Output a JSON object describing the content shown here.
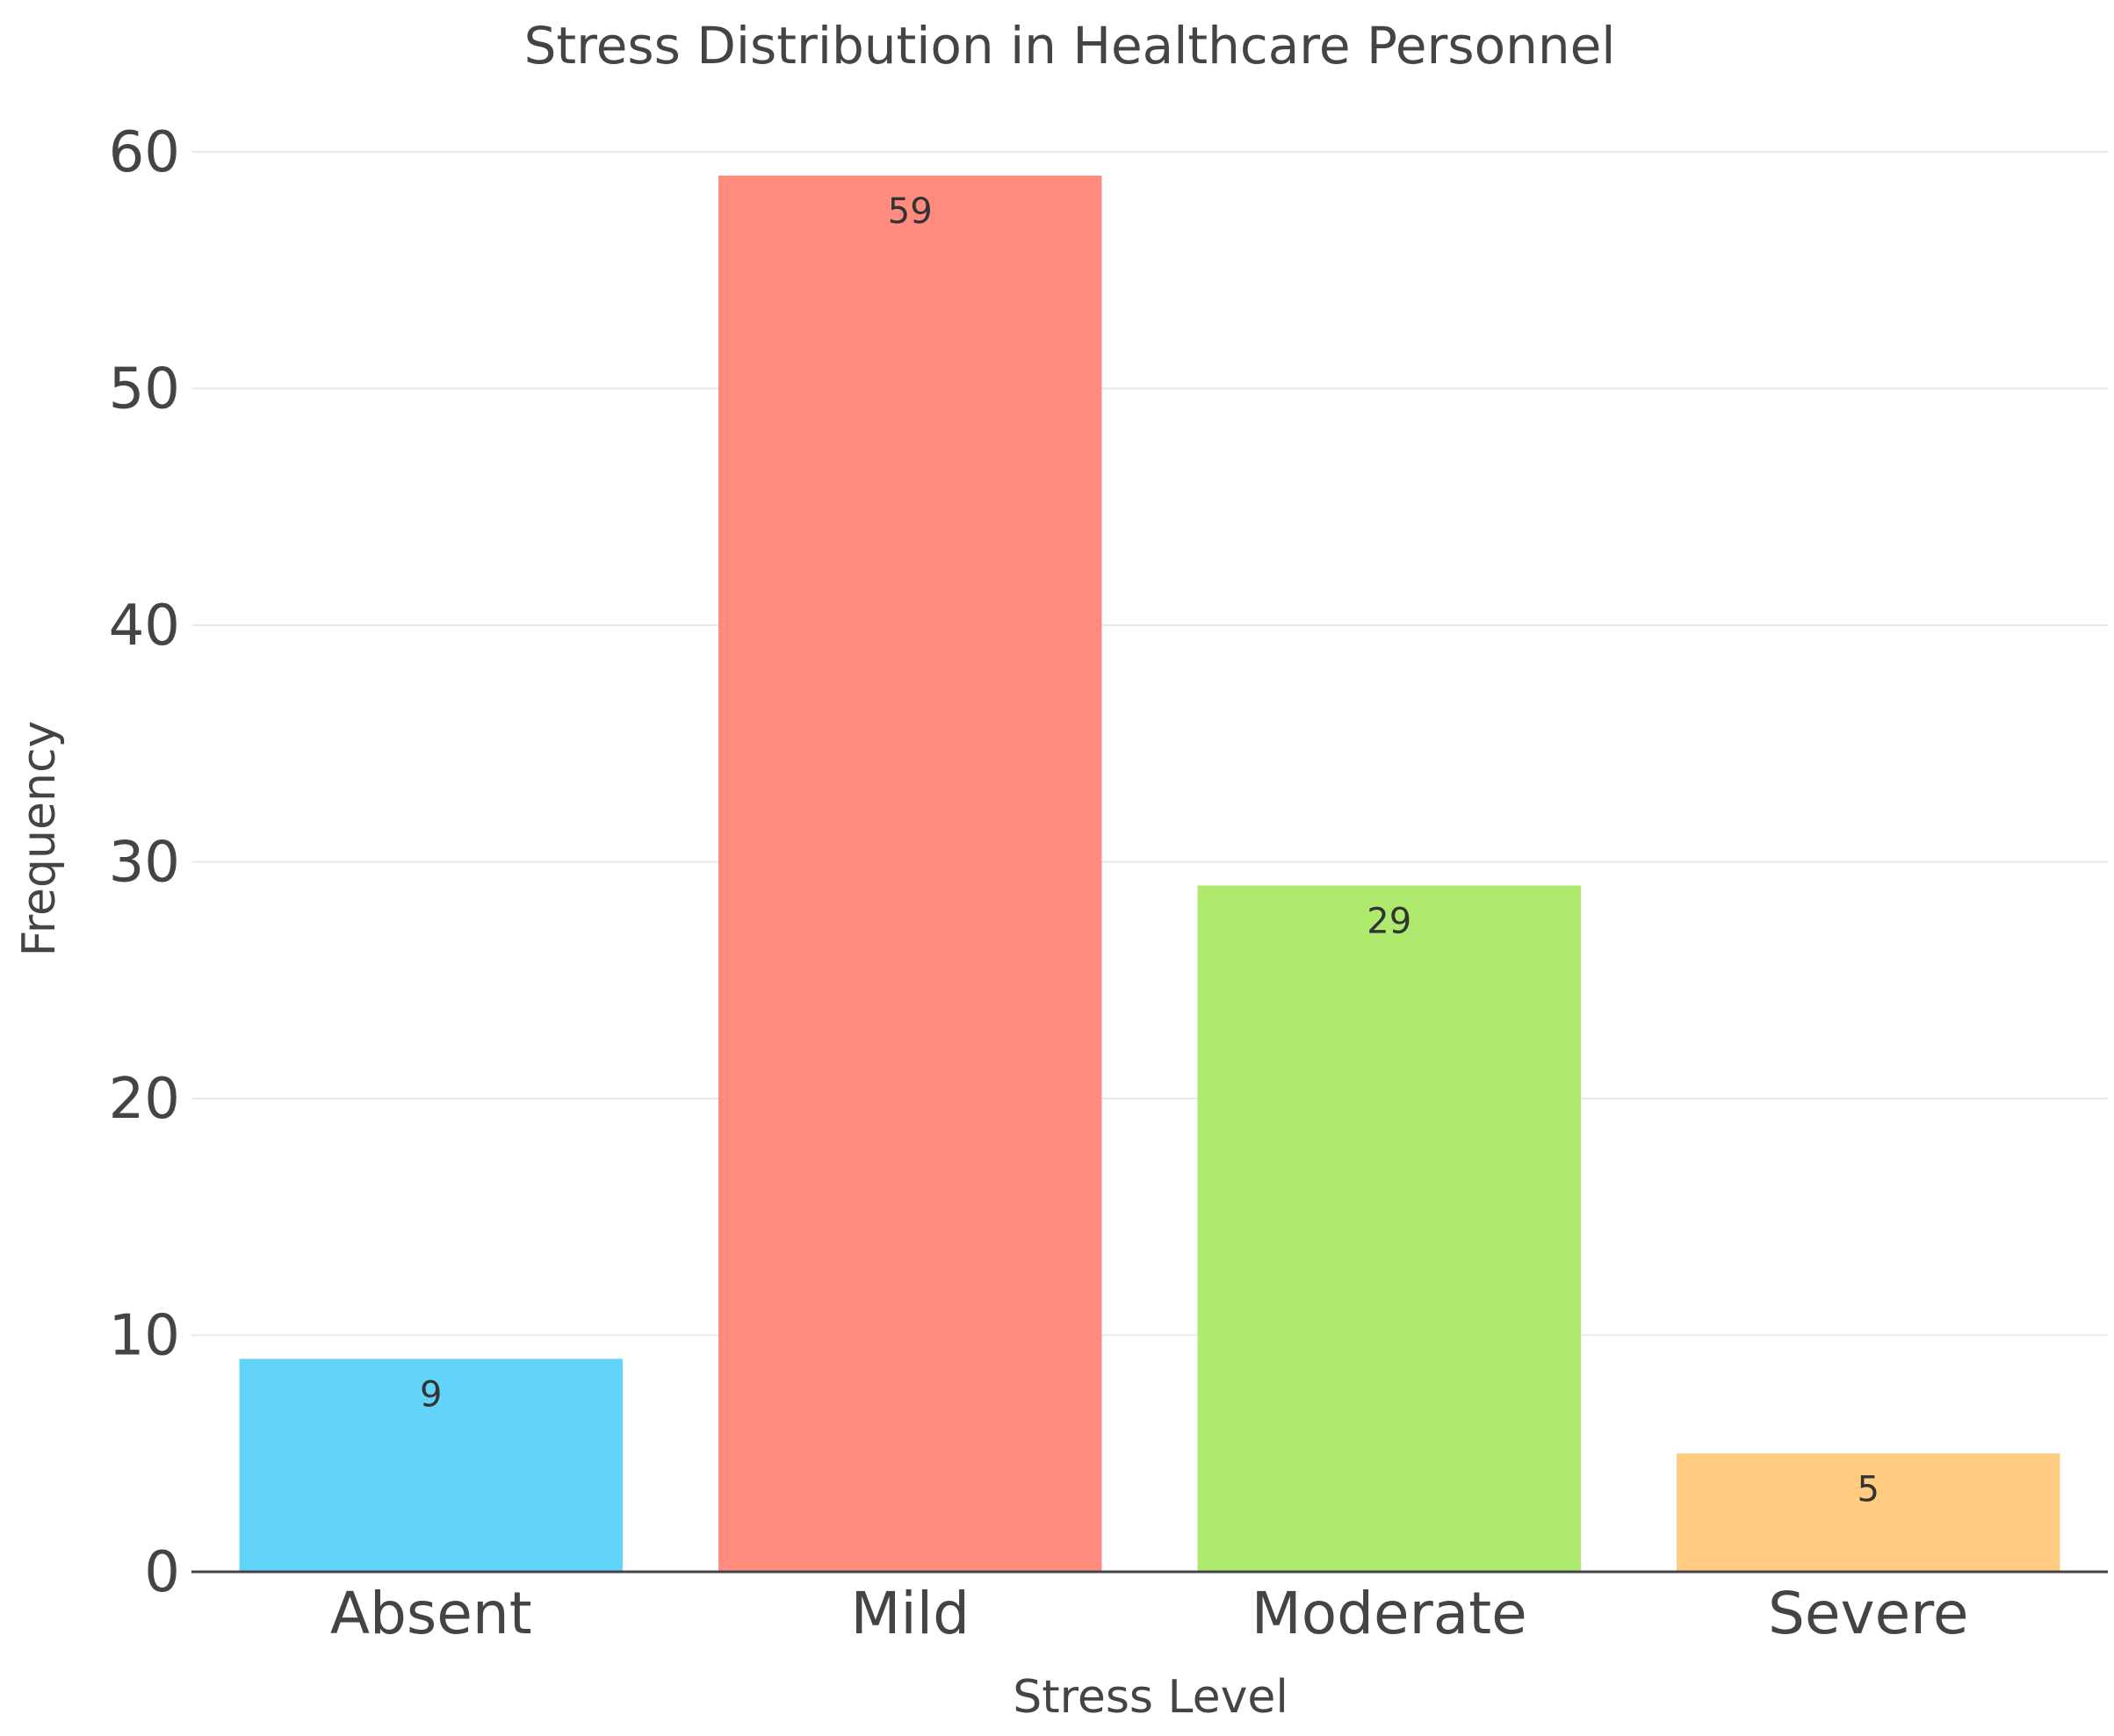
{
  "chart_data": {
    "type": "bar",
    "title": "Stress Distribution in Healthcare Personnel",
    "xlabel": "Stress Level",
    "ylabel": "Frequency",
    "categories": [
      "Absent",
      "Mild",
      "Moderate",
      "Severe"
    ],
    "values": [
      9,
      59,
      29,
      5
    ],
    "data_labels": [
      "9",
      "59",
      "29",
      "5"
    ],
    "colors": [
      "#62d4fa",
      "#ff8a7e",
      "#aeea6e",
      "#ffcb80"
    ],
    "ylim": [
      0,
      60
    ],
    "yticks": [
      0,
      10,
      20,
      30,
      40,
      50,
      60
    ],
    "ytick_labels": [
      "0",
      "10",
      "20",
      "30",
      "40",
      "50",
      "60"
    ],
    "grid": true,
    "legend": "none"
  }
}
